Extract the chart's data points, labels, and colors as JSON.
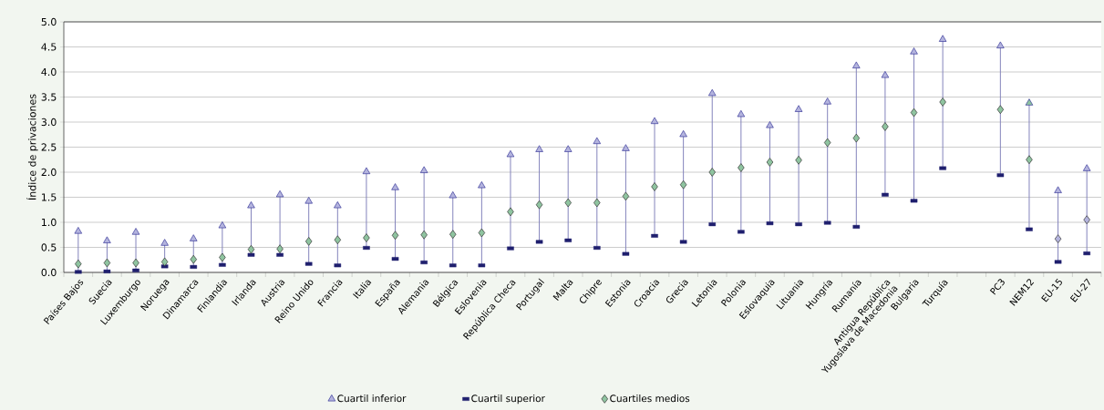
{
  "chart_data": {
    "type": "scatter",
    "ylabel": "Índice de privaciones",
    "categories": [
      "Países Bajos",
      "Suecia",
      "Luxemburgo",
      "Noruega",
      "Dinamarca",
      "Finlandia",
      "Irlanda",
      "Austria",
      "Reino Unido",
      "Francia",
      "Italia",
      "España",
      "Alemania",
      "Bélgica",
      "Eslovenia",
      "República Checa",
      "Portugal",
      "Malta",
      "Chipre",
      "Estonia",
      "Croacia",
      "Grecia",
      "Letonia",
      "Polonia",
      "Eslovaquia",
      "Lituania",
      "Hungría",
      "Rumanía",
      "Antigua República Yugoslava de Macedonia",
      "Bulgaria",
      "Turquía",
      null,
      "PC3",
      "NEM12",
      "EU-15",
      "EU-27"
    ],
    "series": [
      {
        "name": "Cuartil inferior",
        "marker": "triangle",
        "color": "#b4b4de",
        "values": [
          0.82,
          0.63,
          0.8,
          0.58,
          0.67,
          0.93,
          1.33,
          1.55,
          1.42,
          1.33,
          2.01,
          1.69,
          2.03,
          1.53,
          1.73,
          2.35,
          2.45,
          2.45,
          2.61,
          2.47,
          3.01,
          2.75,
          3.57,
          3.15,
          2.93,
          3.25,
          3.4,
          4.12,
          3.93,
          4.4,
          4.65,
          null,
          4.52,
          3.38,
          1.63,
          2.07
        ],
        "colors": [
          "#b4b4de",
          "#b4b4de",
          "#b4b4de",
          "#b4b4de",
          "#b4b4de",
          "#b4b4de",
          "#b4b4de",
          "#b4b4de",
          "#b4b4de",
          "#b4b4de",
          "#b4b4de",
          "#b4b4de",
          "#b4b4de",
          "#b4b4de",
          "#b4b4de",
          "#b4b4de",
          "#b4b4de",
          "#b4b4de",
          "#b4b4de",
          "#b4b4de",
          "#b4b4de",
          "#b4b4de",
          "#b4b4de",
          "#b4b4de",
          "#b4b4de",
          "#b4b4de",
          "#b4b4de",
          "#b4b4de",
          "#b4b4de",
          "#b4b4de",
          "#b4b4de",
          null,
          "#b4b4de",
          "#8fc4a0",
          "#b4b4de",
          "#b4b4de"
        ]
      },
      {
        "name": "Cuartil superior",
        "marker": "square",
        "color": "#1f1f6e",
        "values": [
          0.01,
          0.02,
          0.04,
          0.12,
          0.11,
          0.15,
          0.35,
          0.35,
          0.17,
          0.14,
          0.49,
          0.27,
          0.2,
          0.14,
          0.14,
          0.48,
          0.61,
          0.64,
          0.49,
          0.37,
          0.73,
          0.61,
          0.96,
          0.81,
          0.98,
          0.96,
          0.99,
          0.91,
          1.55,
          1.43,
          2.08,
          null,
          1.94,
          0.86,
          0.21,
          0.38
        ]
      },
      {
        "name": "Cuartiles medios",
        "marker": "diamond",
        "color": "#8fc4a0",
        "values": [
          0.17,
          0.19,
          0.19,
          0.21,
          0.26,
          0.3,
          0.46,
          0.47,
          0.62,
          0.65,
          0.69,
          0.74,
          0.75,
          0.76,
          0.79,
          1.21,
          1.35,
          1.39,
          1.39,
          1.52,
          1.71,
          1.75,
          2.0,
          2.09,
          2.2,
          2.24,
          2.59,
          2.68,
          2.91,
          3.19,
          3.4,
          null,
          3.25,
          2.25,
          0.67,
          1.05
        ],
        "colors": [
          "#8fc4a0",
          "#8fc4a0",
          "#8fc4a0",
          "#8fc4a0",
          "#8fc4a0",
          "#8fc4a0",
          "#8fc4a0",
          "#8fc4a0",
          "#8fc4a0",
          "#8fc4a0",
          "#8fc4a0",
          "#8fc4a0",
          "#8fc4a0",
          "#8fc4a0",
          "#8fc4a0",
          "#8fc4a0",
          "#8fc4a0",
          "#8fc4a0",
          "#8fc4a0",
          "#8fc4a0",
          "#8fc4a0",
          "#8fc4a0",
          "#8fc4a0",
          "#8fc4a0",
          "#8fc4a0",
          "#8fc4a0",
          "#8fc4a0",
          "#8fc4a0",
          "#8fc4a0",
          "#8fc4a0",
          "#8fc4a0",
          null,
          "#8fc4a0",
          "#8fc4a0",
          "#b4b4de",
          "#b4b4de"
        ]
      }
    ],
    "ylim": [
      0,
      5
    ],
    "yticks": [
      {
        "value": 0,
        "label": "0.0"
      },
      {
        "value": 0.5,
        "label": "0.5"
      },
      {
        "value": 1,
        "label": "1.0"
      },
      {
        "value": 1.5,
        "label": "1.5"
      },
      {
        "value": 2,
        "label": "2.0"
      },
      {
        "value": 2.5,
        "label": "2.5"
      },
      {
        "value": 3,
        "label": "3.0"
      },
      {
        "value": 3.5,
        "label": "3.5"
      },
      {
        "value": 4,
        "label": "4.0"
      },
      {
        "value": 4.5,
        "label": "4.5"
      },
      {
        "value": 5,
        "label": "5.0"
      }
    ],
    "grid": "y",
    "legend": "bottom"
  }
}
